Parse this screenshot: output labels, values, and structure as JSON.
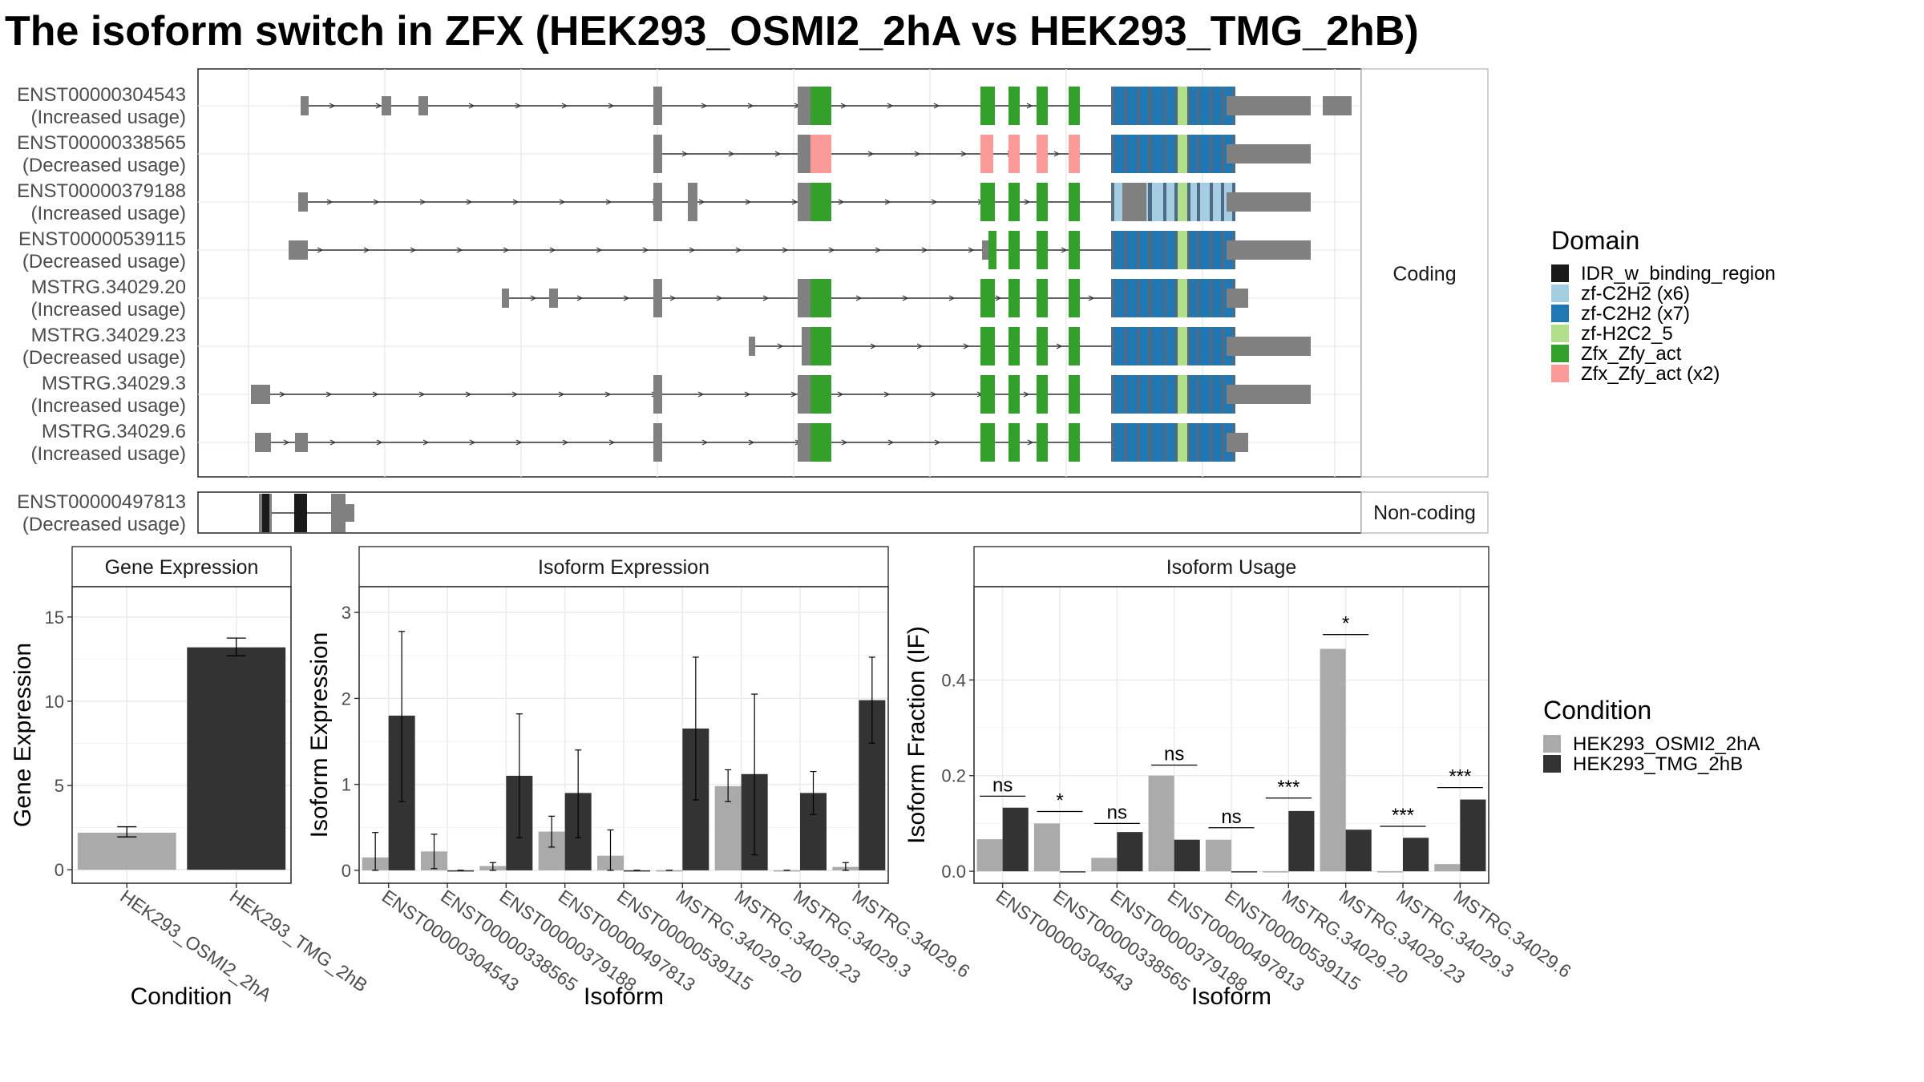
{
  "title": "The isoform switch in ZFX (HEK293_OSMI2_2hA vs HEK293_TMG_2hB)",
  "colors": {
    "IDR_w_binding_region": "#1a1a1a",
    "zf-C2H2 (x6)": "#a6cee3",
    "zf-C2H2 (x7)": "#1f78b4",
    "zf-H2C2_5": "#b2df8a",
    "Zfx_Zfy_act": "#33a02c",
    "Zfx_Zfy_act (x2)": "#fb9a99",
    "exon": "#808080",
    "cond_a": "#aaaaaa",
    "cond_b": "#333333"
  },
  "legend_domain": {
    "title": "Domain",
    "items": [
      "IDR_w_binding_region",
      "zf-C2H2 (x6)",
      "zf-C2H2 (x7)",
      "zf-H2C2_5",
      "Zfx_Zfy_act",
      "Zfx_Zfy_act (x2)"
    ]
  },
  "legend_condition": {
    "title": "Condition",
    "items": [
      "HEK293_OSMI2_2hA",
      "HEK293_TMG_2hB"
    ]
  },
  "structure": {
    "coding_strip": "Coding",
    "noncoding_strip": "Non-coding",
    "coding_transcripts": [
      {
        "id": "ENST00000304543",
        "usage": "(Increased usage)"
      },
      {
        "id": "ENST00000338565",
        "usage": "(Decreased usage)"
      },
      {
        "id": "ENST00000379188",
        "usage": "(Increased usage)"
      },
      {
        "id": "ENST00000539115",
        "usage": "(Decreased usage)"
      },
      {
        "id": "MSTRG.34029.20",
        "usage": "(Increased usage)"
      },
      {
        "id": "MSTRG.34029.23",
        "usage": "(Decreased usage)"
      },
      {
        "id": "MSTRG.34029.3",
        "usage": "(Increased usage)"
      },
      {
        "id": "MSTRG.34029.6",
        "usage": "(Increased usage)"
      }
    ],
    "noncoding_transcripts": [
      {
        "id": "ENST00000497813",
        "usage": "(Decreased usage)"
      }
    ]
  },
  "chart_data": [
    {
      "type": "bar",
      "title": "Gene Expression",
      "xlabel": "Condition",
      "ylabel": "Gene Expression",
      "categories": [
        "HEK293_OSMI2_2hA",
        "HEK293_TMG_2hB"
      ],
      "values": [
        2.2,
        13.2
      ],
      "err_low": [
        1.95,
        12.7
      ],
      "err_high": [
        2.55,
        13.75
      ],
      "ylim": [
        -0.8,
        16.8
      ],
      "yticks": [
        "0",
        "5",
        "10",
        "15"
      ],
      "grid": true
    },
    {
      "type": "bar",
      "title": "Isoform Expression",
      "xlabel": "Isoform",
      "ylabel": "Isoform Expression",
      "categories": [
        "ENST00000304543",
        "ENST00000338565",
        "ENST00000379188",
        "ENST00000497813",
        "ENST00000539115",
        "MSTRG.34029.20",
        "MSTRG.34029.23",
        "MSTRG.34029.3",
        "MSTRG.34029.6"
      ],
      "series": [
        {
          "name": "HEK293_OSMI2_2hA",
          "values": [
            0.15,
            0.22,
            0.05,
            0.45,
            0.17,
            0.0,
            0.98,
            0.0,
            0.04
          ],
          "err_low": [
            0.0,
            0.02,
            0.0,
            0.27,
            0.0,
            0.0,
            0.8,
            0.0,
            0.0
          ],
          "err_high": [
            0.44,
            0.42,
            0.09,
            0.63,
            0.47,
            0.0,
            1.17,
            0.0,
            0.09
          ]
        },
        {
          "name": "HEK293_TMG_2hB",
          "values": [
            1.8,
            0.0,
            1.1,
            0.9,
            0.0,
            1.65,
            1.12,
            0.9,
            1.98
          ],
          "err_low": [
            0.8,
            0.0,
            0.38,
            0.38,
            0.0,
            0.82,
            0.18,
            0.65,
            1.48
          ],
          "err_high": [
            2.78,
            0.0,
            1.82,
            1.4,
            0.0,
            2.48,
            2.05,
            1.15,
            2.48
          ]
        }
      ],
      "ylim": [
        -0.15,
        3.3
      ],
      "yticks": [
        "0",
        "1",
        "2",
        "3"
      ],
      "grid": true
    },
    {
      "type": "bar",
      "title": "Isoform Usage",
      "xlabel": "Isoform",
      "ylabel": "Isoform Fraction (IF)",
      "categories": [
        "ENST00000304543",
        "ENST00000338565",
        "ENST00000379188",
        "ENST00000497813",
        "ENST00000539115",
        "MSTRG.34029.20",
        "MSTRG.34029.23",
        "MSTRG.34029.3",
        "MSTRG.34029.6"
      ],
      "series": [
        {
          "name": "HEK293_OSMI2_2hA",
          "values": [
            0.067,
            0.1,
            0.028,
            0.2,
            0.066,
            0.0,
            0.465,
            0.0,
            0.015
          ]
        },
        {
          "name": "HEK293_TMG_2hB",
          "values": [
            0.133,
            0.0,
            0.082,
            0.066,
            0.0,
            0.126,
            0.087,
            0.07,
            0.15
          ]
        }
      ],
      "significance": [
        "ns",
        "*",
        "ns",
        "ns",
        "ns",
        "***",
        "*",
        "***",
        "***"
      ],
      "sig_level": [
        0.157,
        0.125,
        0.1,
        0.222,
        0.091,
        0.153,
        0.495,
        0.094,
        0.175
      ],
      "ylim": [
        -0.025,
        0.595
      ],
      "yticks": [
        "0.0",
        "0.2",
        "0.4"
      ],
      "grid": true
    }
  ]
}
